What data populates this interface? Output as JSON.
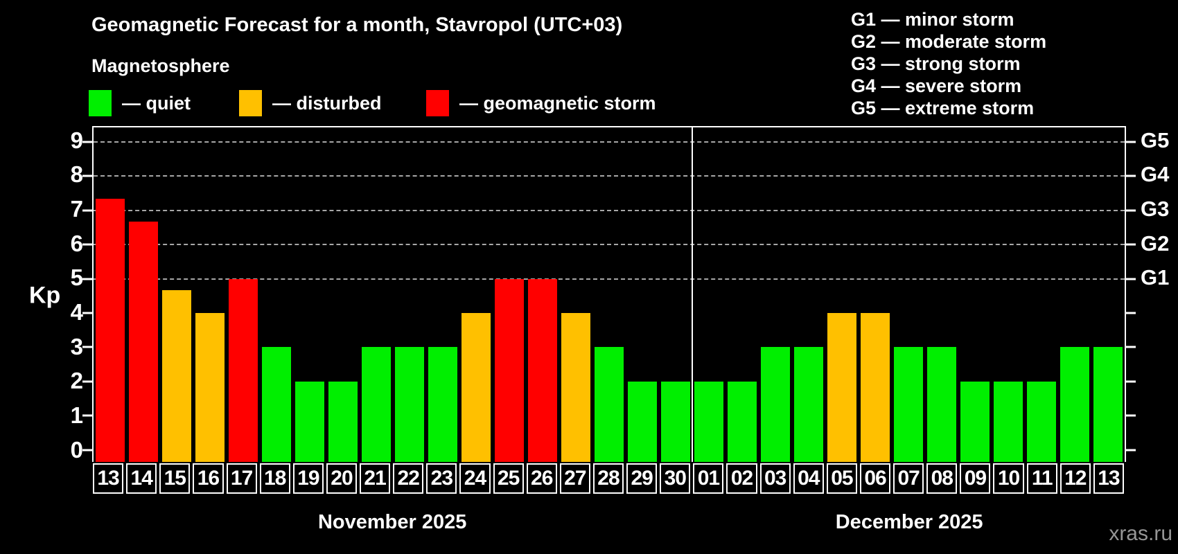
{
  "header": {
    "title": "Geomagnetic Forecast for a month, Stavropol (UTC+03)",
    "subtitle": "Magnetosphere"
  },
  "legend": {
    "items": [
      {
        "status": "quiet",
        "label": "— quiet"
      },
      {
        "status": "disturbed",
        "label": "— disturbed"
      },
      {
        "status": "storm",
        "label": "— geomagnetic storm"
      }
    ]
  },
  "g_legend": {
    "items": [
      "G1 — minor storm",
      "G2 — moderate storm",
      "G3 — strong storm",
      "G4 — severe storm",
      "G5 — extreme storm"
    ]
  },
  "colors": {
    "quiet": "#00ef00",
    "disturbed": "#ffc000",
    "storm": "#ff0000",
    "grid": "#a8a8a8",
    "axis": "#ffffff",
    "watermark": "#969696",
    "background": "#000000"
  },
  "watermark": "xras.ru",
  "chart_data": {
    "type": "bar",
    "title": "Geomagnetic Forecast for a month, Stavropol (UTC+03)",
    "ylabel": "Kp",
    "ylim": [
      -0.35,
      9.42
    ],
    "y_ticks": [
      0,
      1,
      2,
      3,
      4,
      5,
      6,
      7,
      8,
      9
    ],
    "grid_levels": [
      5,
      6,
      7,
      8,
      9
    ],
    "grid_style": "dashed",
    "legend_position": "top",
    "g_scale": [
      {
        "label": "G1",
        "kp": 5
      },
      {
        "label": "G2",
        "kp": 6
      },
      {
        "label": "G3",
        "kp": 7
      },
      {
        "label": "G4",
        "kp": 8
      },
      {
        "label": "G5",
        "kp": 9
      }
    ],
    "months": [
      {
        "label": "November 2025",
        "days": [
          {
            "day": "13",
            "kp": 7.33,
            "status": "storm"
          },
          {
            "day": "14",
            "kp": 6.67,
            "status": "storm"
          },
          {
            "day": "15",
            "kp": 4.67,
            "status": "disturbed"
          },
          {
            "day": "16",
            "kp": 4,
            "status": "disturbed"
          },
          {
            "day": "17",
            "kp": 5,
            "status": "storm"
          },
          {
            "day": "18",
            "kp": 3,
            "status": "quiet"
          },
          {
            "day": "19",
            "kp": 2,
            "status": "quiet"
          },
          {
            "day": "20",
            "kp": 2,
            "status": "quiet"
          },
          {
            "day": "21",
            "kp": 3,
            "status": "quiet"
          },
          {
            "day": "22",
            "kp": 3,
            "status": "quiet"
          },
          {
            "day": "23",
            "kp": 3,
            "status": "quiet"
          },
          {
            "day": "24",
            "kp": 4,
            "status": "disturbed"
          },
          {
            "day": "25",
            "kp": 5,
            "status": "storm"
          },
          {
            "day": "26",
            "kp": 5,
            "status": "storm"
          },
          {
            "day": "27",
            "kp": 4,
            "status": "disturbed"
          },
          {
            "day": "28",
            "kp": 3,
            "status": "quiet"
          },
          {
            "day": "29",
            "kp": 2,
            "status": "quiet"
          },
          {
            "day": "30",
            "kp": 2,
            "status": "quiet"
          }
        ]
      },
      {
        "label": "December 2025",
        "days": [
          {
            "day": "01",
            "kp": 2,
            "status": "quiet"
          },
          {
            "day": "02",
            "kp": 2,
            "status": "quiet"
          },
          {
            "day": "03",
            "kp": 3,
            "status": "quiet"
          },
          {
            "day": "04",
            "kp": 3,
            "status": "quiet"
          },
          {
            "day": "05",
            "kp": 4,
            "status": "disturbed"
          },
          {
            "day": "06",
            "kp": 4,
            "status": "disturbed"
          },
          {
            "day": "07",
            "kp": 3,
            "status": "quiet"
          },
          {
            "day": "08",
            "kp": 3,
            "status": "quiet"
          },
          {
            "day": "09",
            "kp": 2,
            "status": "quiet"
          },
          {
            "day": "10",
            "kp": 2,
            "status": "quiet"
          },
          {
            "day": "11",
            "kp": 2,
            "status": "quiet"
          },
          {
            "day": "12",
            "kp": 3,
            "status": "quiet"
          },
          {
            "day": "13",
            "kp": 3,
            "status": "quiet"
          }
        ]
      }
    ]
  }
}
